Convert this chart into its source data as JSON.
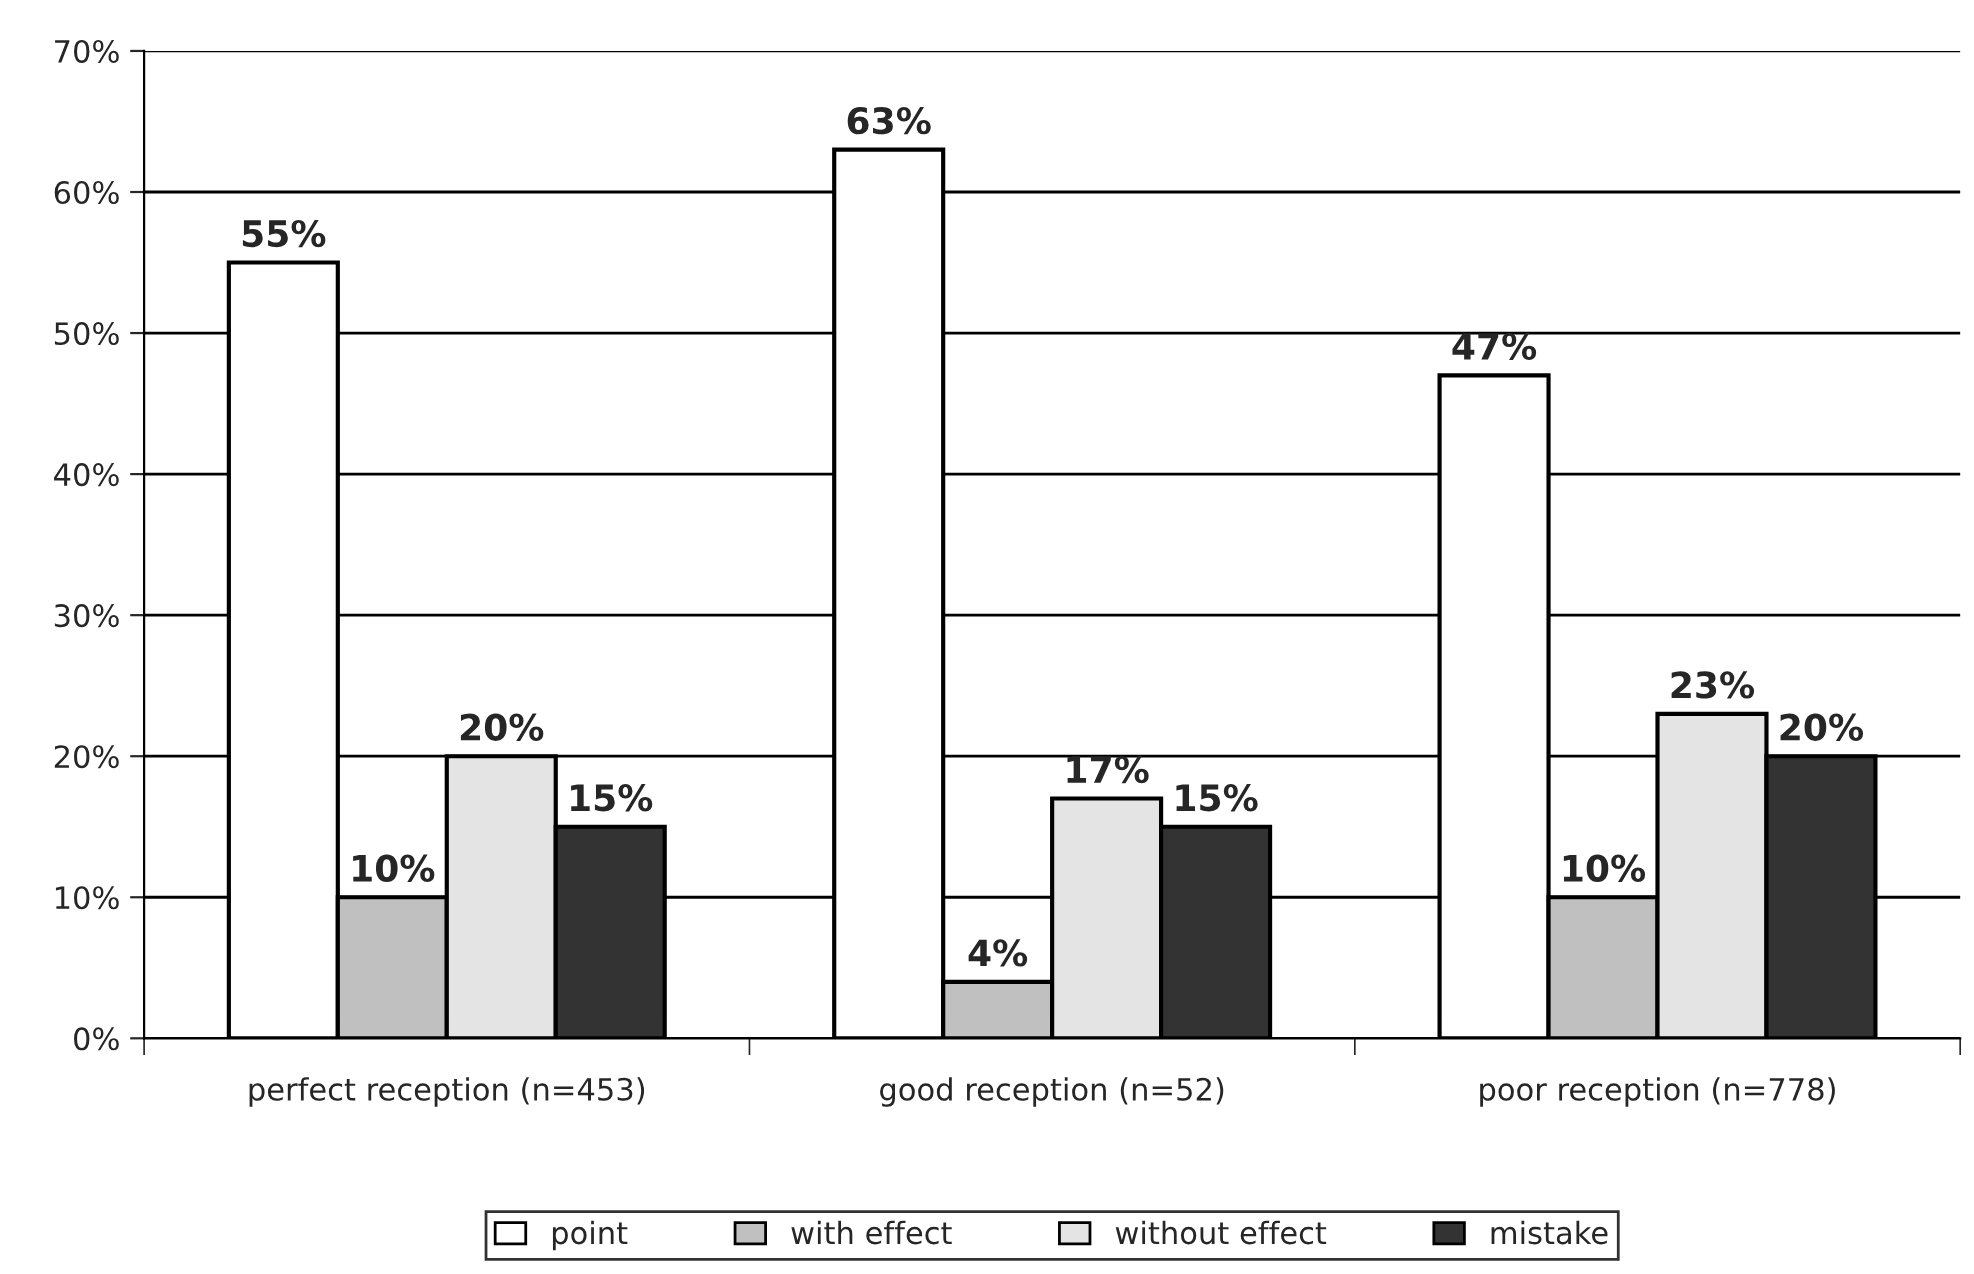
{
  "chart_data": {
    "type": "bar",
    "categories": [
      "perfect reception (n=453)",
      "good reception (n=52)",
      "poor reception (n=778)"
    ],
    "series": [
      {
        "name": "point",
        "color": "#ffffff",
        "values": [
          55,
          63,
          47
        ],
        "value_labels": [
          "55%",
          "63%",
          "47%"
        ]
      },
      {
        "name": "with effect",
        "color": "#c0c0c0",
        "values": [
          10,
          4,
          10
        ],
        "value_labels": [
          "10%",
          "4%",
          "10%"
        ]
      },
      {
        "name": "without effect",
        "color": "#e4e4e4",
        "values": [
          20,
          17,
          23
        ],
        "value_labels": [
          "20%",
          "17%",
          "23%"
        ]
      },
      {
        "name": "mistake",
        "color": "#333333",
        "values": [
          15,
          15,
          20
        ],
        "value_labels": [
          "15%",
          "15%",
          "20%"
        ]
      }
    ],
    "ylim": [
      0,
      70
    ],
    "yticks": [
      {
        "value": 0,
        "label": "0%"
      },
      {
        "value": 10,
        "label": "10%"
      },
      {
        "value": 20,
        "label": "20%"
      },
      {
        "value": 30,
        "label": "30%"
      },
      {
        "value": 40,
        "label": "40%"
      },
      {
        "value": 50,
        "label": "50%"
      },
      {
        "value": 60,
        "label": "60%"
      },
      {
        "value": 70,
        "label": "70%"
      }
    ],
    "grid": "y",
    "legend": "bottom"
  }
}
